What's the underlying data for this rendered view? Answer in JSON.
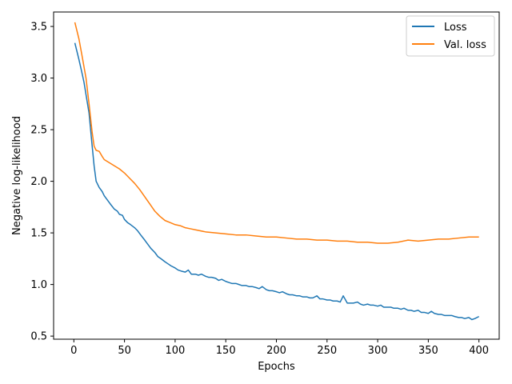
{
  "chart_data": {
    "type": "line",
    "title": "",
    "xlabel": "Epochs",
    "ylabel": "Negative log-likelihood",
    "xlim": [
      -20,
      420
    ],
    "ylim": [
      0.47,
      3.64
    ],
    "xticks": [
      0,
      50,
      100,
      150,
      200,
      250,
      300,
      350,
      400
    ],
    "yticks": [
      0.5,
      1.0,
      1.5,
      2.0,
      2.5,
      3.0,
      3.5
    ],
    "xtick_labels": [
      "0",
      "50",
      "100",
      "150",
      "200",
      "250",
      "300",
      "350",
      "400"
    ],
    "ytick_labels": [
      "0.5",
      "1.0",
      "1.5",
      "2.0",
      "2.5",
      "3.0",
      "3.5"
    ],
    "grid": false,
    "legend_position": "top-right",
    "series": [
      {
        "name": "Loss",
        "color": "#1f77b4",
        "x": [
          1,
          5,
          8,
          10,
          12,
          15,
          18,
          20,
          22,
          25,
          28,
          30,
          33,
          36,
          40,
          43,
          45,
          48,
          50,
          53,
          56,
          60,
          63,
          66,
          70,
          73,
          76,
          80,
          83,
          86,
          90,
          93,
          96,
          100,
          103,
          106,
          110,
          113,
          116,
          120,
          123,
          126,
          130,
          133,
          136,
          140,
          143,
          146,
          150,
          153,
          156,
          160,
          163,
          166,
          170,
          173,
          176,
          180,
          183,
          186,
          190,
          193,
          196,
          200,
          203,
          206,
          210,
          213,
          216,
          220,
          223,
          226,
          230,
          233,
          236,
          240,
          243,
          246,
          250,
          253,
          256,
          260,
          263,
          266,
          270,
          273,
          276,
          280,
          283,
          286,
          290,
          293,
          296,
          300,
          303,
          306,
          310,
          313,
          316,
          320,
          323,
          326,
          330,
          333,
          336,
          340,
          343,
          346,
          350,
          353,
          356,
          360,
          363,
          366,
          370,
          373,
          376,
          380,
          383,
          386,
          390,
          393,
          396,
          400
        ],
        "y": [
          3.34,
          3.18,
          3.05,
          2.96,
          2.84,
          2.66,
          2.35,
          2.15,
          2.0,
          1.94,
          1.9,
          1.86,
          1.82,
          1.78,
          1.73,
          1.71,
          1.68,
          1.67,
          1.63,
          1.6,
          1.58,
          1.55,
          1.52,
          1.48,
          1.43,
          1.39,
          1.35,
          1.31,
          1.27,
          1.25,
          1.22,
          1.2,
          1.18,
          1.16,
          1.14,
          1.13,
          1.12,
          1.14,
          1.1,
          1.1,
          1.09,
          1.1,
          1.08,
          1.07,
          1.07,
          1.06,
          1.04,
          1.05,
          1.03,
          1.02,
          1.01,
          1.01,
          1.0,
          0.99,
          0.99,
          0.98,
          0.98,
          0.97,
          0.96,
          0.98,
          0.95,
          0.94,
          0.94,
          0.93,
          0.92,
          0.93,
          0.91,
          0.9,
          0.9,
          0.89,
          0.89,
          0.88,
          0.88,
          0.87,
          0.87,
          0.89,
          0.86,
          0.86,
          0.85,
          0.85,
          0.84,
          0.84,
          0.83,
          0.89,
          0.82,
          0.82,
          0.82,
          0.83,
          0.81,
          0.8,
          0.81,
          0.8,
          0.8,
          0.79,
          0.8,
          0.78,
          0.78,
          0.78,
          0.77,
          0.77,
          0.76,
          0.77,
          0.75,
          0.75,
          0.74,
          0.75,
          0.73,
          0.73,
          0.72,
          0.74,
          0.72,
          0.71,
          0.71,
          0.7,
          0.7,
          0.7,
          0.69,
          0.68,
          0.68,
          0.67,
          0.68,
          0.66,
          0.67,
          0.69
        ]
      },
      {
        "name": "Val. loss",
        "color": "#ff7f0e",
        "x": [
          1,
          5,
          8,
          12,
          15,
          18,
          20,
          22,
          25,
          28,
          30,
          35,
          40,
          45,
          50,
          55,
          60,
          65,
          70,
          75,
          80,
          85,
          90,
          95,
          100,
          105,
          110,
          115,
          120,
          130,
          140,
          150,
          160,
          170,
          180,
          190,
          200,
          210,
          220,
          230,
          240,
          250,
          260,
          270,
          280,
          290,
          300,
          310,
          320,
          330,
          340,
          350,
          360,
          370,
          380,
          390,
          400
        ],
        "y": [
          3.54,
          3.38,
          3.22,
          3.0,
          2.75,
          2.48,
          2.34,
          2.3,
          2.29,
          2.24,
          2.21,
          2.18,
          2.15,
          2.12,
          2.08,
          2.03,
          1.98,
          1.92,
          1.85,
          1.78,
          1.71,
          1.66,
          1.62,
          1.6,
          1.58,
          1.57,
          1.55,
          1.54,
          1.53,
          1.51,
          1.5,
          1.49,
          1.48,
          1.48,
          1.47,
          1.46,
          1.46,
          1.45,
          1.44,
          1.44,
          1.43,
          1.43,
          1.42,
          1.42,
          1.41,
          1.41,
          1.4,
          1.4,
          1.41,
          1.43,
          1.42,
          1.43,
          1.44,
          1.44,
          1.45,
          1.46,
          1.46
        ]
      }
    ]
  }
}
